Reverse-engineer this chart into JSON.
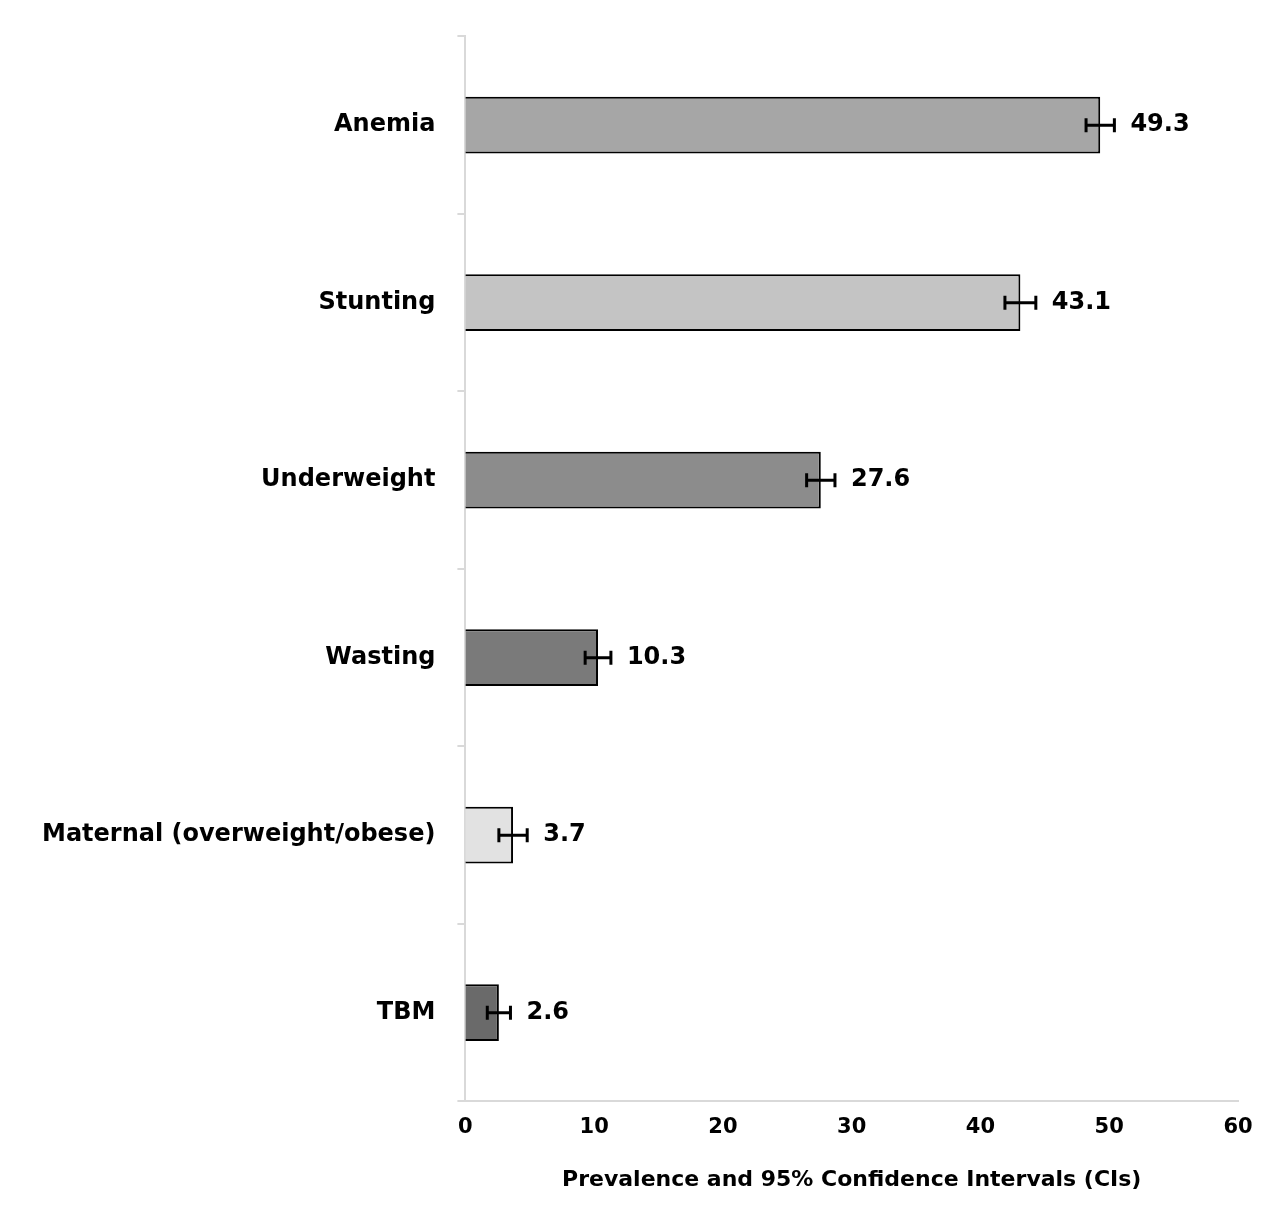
{
  "chart_data": {
    "type": "bar",
    "orientation": "horizontal",
    "xlabel": "Prevalence and 95% Confidence Intervals (CIs)",
    "categories": [
      "Anemia",
      "Stunting",
      "Underweight",
      "Wasting",
      "Maternal (overweight/obese)",
      "TBM"
    ],
    "values": [
      49.3,
      43.1,
      27.6,
      10.3,
      3.7,
      2.6
    ],
    "errors": [
      1.1,
      1.2,
      1.1,
      1.0,
      1.1,
      0.9
    ],
    "colors": [
      "#a6a6a6",
      "#c4c4c4",
      "#8c8c8c",
      "#7a7a7a",
      "#e2e2e2",
      "#6a6a6a"
    ],
    "xlim": [
      0,
      60
    ],
    "xticks": [
      0,
      10,
      20,
      30,
      40,
      50,
      60
    ],
    "data_labels": true,
    "grid": false,
    "legend": false
  }
}
